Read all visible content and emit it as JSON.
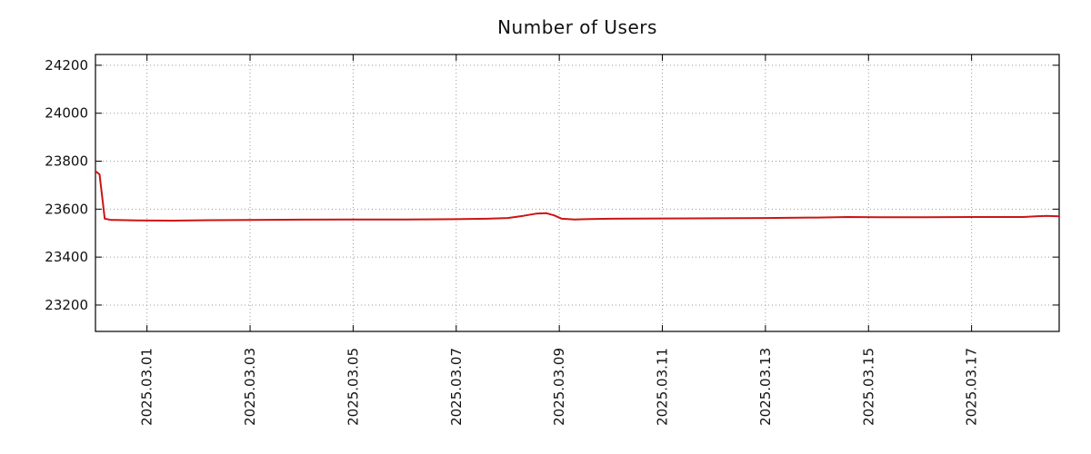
{
  "chart_data": {
    "type": "line",
    "title": "Number of Users",
    "xlabel": "",
    "ylabel": "",
    "x_axis": {
      "tick_labels": [
        "2025.03.01",
        "2025.03.03",
        "2025.03.05",
        "2025.03.07",
        "2025.03.09",
        "2025.03.11",
        "2025.03.13",
        "2025.03.15",
        "2025.03.17"
      ],
      "tick_days": [
        1,
        3,
        5,
        7,
        9,
        11,
        13,
        15,
        17
      ],
      "xlim_days": [
        0,
        18.7
      ]
    },
    "y_axis": {
      "tick_labels": [
        "23200",
        "23400",
        "23600",
        "23800",
        "24000",
        "24200"
      ],
      "tick_values": [
        23200,
        23400,
        23600,
        23800,
        24000,
        24200
      ],
      "ylim": [
        23090,
        24245
      ]
    },
    "series": [
      {
        "name": "Number of Users",
        "color": "#cc1414",
        "points_day_value": [
          [
            0.0,
            23758
          ],
          [
            0.08,
            23745
          ],
          [
            0.18,
            23560
          ],
          [
            0.3,
            23555
          ],
          [
            0.8,
            23553
          ],
          [
            1.5,
            23552
          ],
          [
            2.2,
            23554
          ],
          [
            3.0,
            23555
          ],
          [
            4.0,
            23556
          ],
          [
            5.0,
            23557
          ],
          [
            6.0,
            23557
          ],
          [
            7.0,
            23558
          ],
          [
            7.6,
            23560
          ],
          [
            8.0,
            23563
          ],
          [
            8.3,
            23572
          ],
          [
            8.55,
            23581
          ],
          [
            8.75,
            23583
          ],
          [
            8.9,
            23574
          ],
          [
            9.05,
            23560
          ],
          [
            9.3,
            23557
          ],
          [
            9.6,
            23559
          ],
          [
            10.0,
            23560
          ],
          [
            11.0,
            23561
          ],
          [
            12.0,
            23562
          ],
          [
            13.0,
            23563
          ],
          [
            14.0,
            23565
          ],
          [
            14.6,
            23567
          ],
          [
            15.2,
            23566
          ],
          [
            16.0,
            23566
          ],
          [
            17.0,
            23567
          ],
          [
            18.0,
            23567
          ],
          [
            18.45,
            23572
          ],
          [
            18.7,
            23570
          ]
        ]
      }
    ],
    "grid": {
      "style": "dotted",
      "color": "#9a9a9a"
    },
    "legend": "none"
  }
}
